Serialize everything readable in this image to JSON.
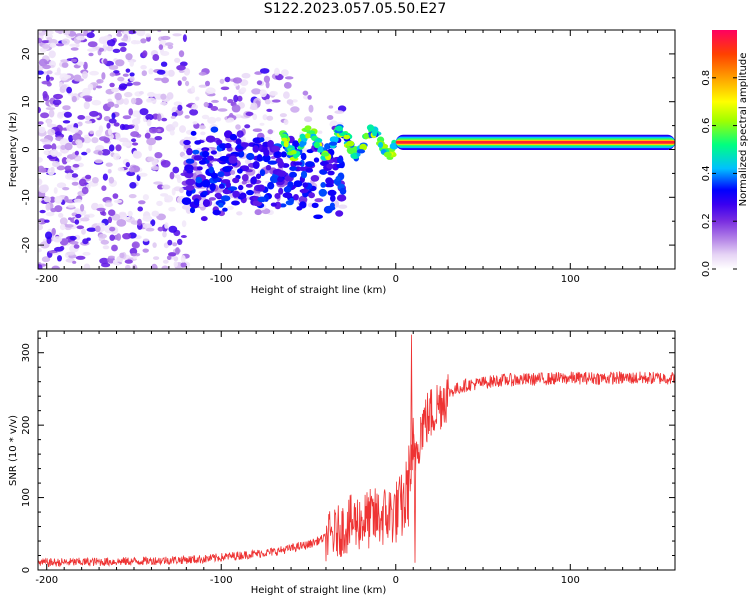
{
  "title": "S122.2023.057.05.50.E27",
  "chart_data": [
    {
      "type": "heatmap",
      "xlabel": "Height of straight line (km)",
      "ylabel": "Frequency (Hz)",
      "xlim": [
        -205,
        160
      ],
      "ylim": [
        -25,
        25
      ],
      "xticks": [
        -200,
        -100,
        0,
        100
      ],
      "yticks": [
        -20,
        -10,
        0,
        10,
        20
      ],
      "colorbar": {
        "label": "Normalized spectral amplitude",
        "range": [
          0,
          1
        ],
        "ticks": [
          "0.0",
          "0.2",
          "0.4",
          "0.6",
          "0.8"
        ],
        "colormap": [
          "#ffffff",
          "#e6d4f5",
          "#b88ae8",
          "#7a2ee0",
          "#3a00f0",
          "#0000ff",
          "#00c0ff",
          "#00ff80",
          "#a0ff00",
          "#ffff00",
          "#ffa000",
          "#ff4000",
          "#ff0060"
        ]
      },
      "ridge": {
        "x_start": -65,
        "x_end": 160,
        "frequency_hz": 1.5,
        "description_value_peak": 1.0
      },
      "scatter_region": {
        "x_range": [
          -205,
          -30
        ],
        "y_range": [
          -25,
          25
        ]
      }
    },
    {
      "type": "line",
      "xlabel": "Height of straight line (km)",
      "ylabel": "SNR (10 * v/v)",
      "xlim": [
        -205,
        160
      ],
      "ylim": [
        0,
        330
      ],
      "xticks": [
        -200,
        -100,
        0,
        100
      ],
      "yticks": [
        0,
        100,
        200,
        300
      ],
      "color": "#ee3333",
      "profile": [
        [
          -205,
          10
        ],
        [
          -150,
          12
        ],
        [
          -110,
          15
        ],
        [
          -90,
          20
        ],
        [
          -70,
          25
        ],
        [
          -50,
          35
        ],
        [
          -35,
          50
        ],
        [
          -25,
          65
        ],
        [
          -15,
          70
        ],
        [
          -5,
          75
        ],
        [
          0,
          80
        ],
        [
          5,
          90
        ],
        [
          10,
          150
        ],
        [
          15,
          200
        ],
        [
          20,
          215
        ],
        [
          25,
          230
        ],
        [
          30,
          245
        ],
        [
          40,
          255
        ],
        [
          60,
          262
        ],
        [
          100,
          265
        ],
        [
          160,
          265
        ]
      ],
      "spikes": [
        {
          "x": 9,
          "y": 325
        },
        {
          "x": 10,
          "y": 210
        },
        {
          "x": 11,
          "y": 10
        }
      ]
    }
  ]
}
